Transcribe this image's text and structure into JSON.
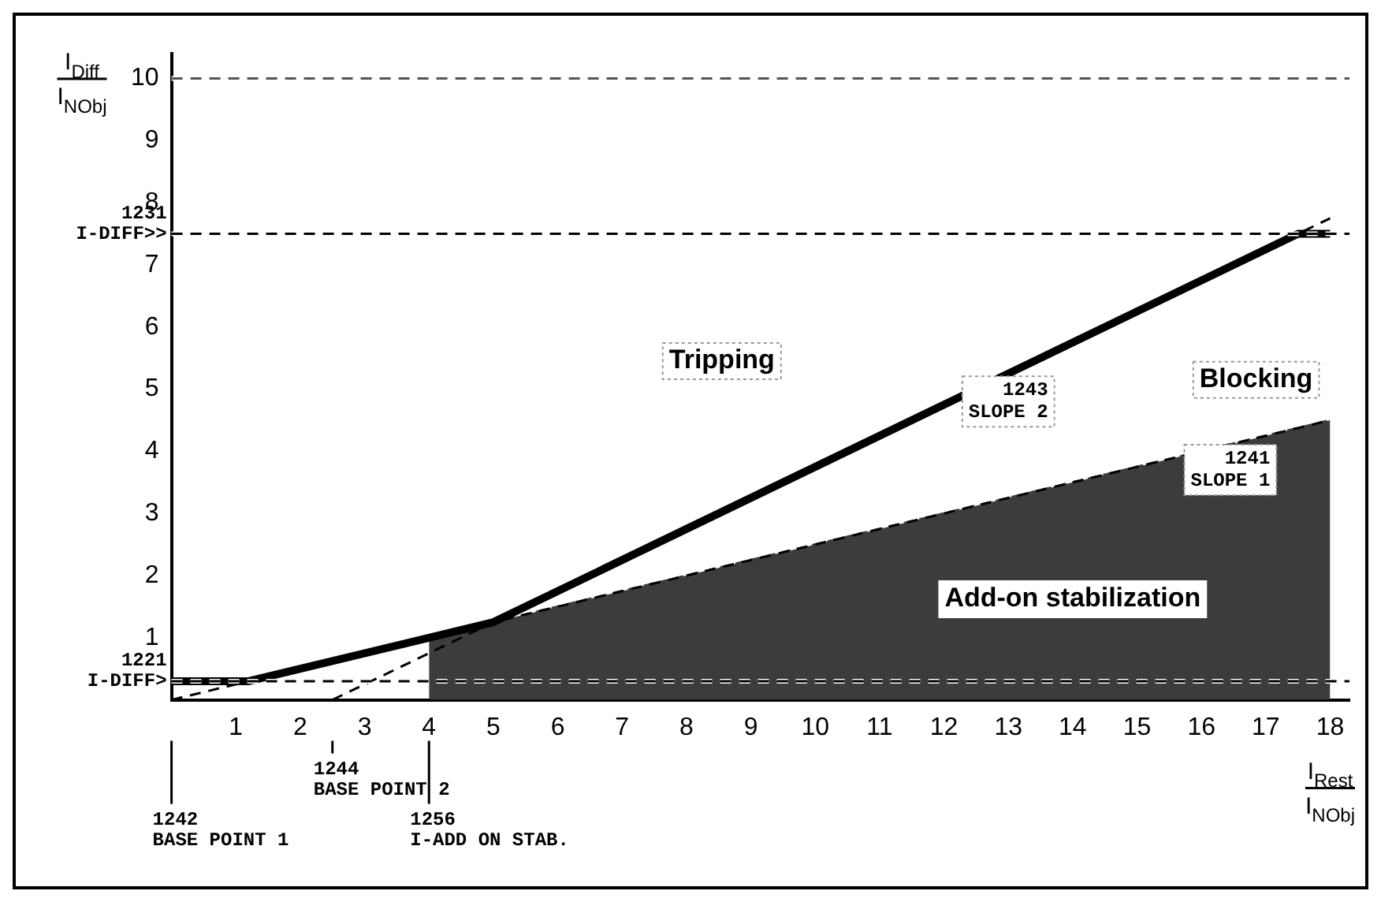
{
  "chart_data": {
    "type": "line",
    "xlabel": "I$_{Rest}$\nI$_{NObj}$",
    "ylabel": "I$_{Diff}$\nI$_{NObj}$",
    "xlim": [
      0,
      18.3
    ],
    "ylim": [
      0,
      10.4
    ],
    "xticks": [
      1,
      2,
      3,
      4,
      5,
      6,
      7,
      8,
      9,
      10,
      11,
      12,
      13,
      14,
      15,
      16,
      17,
      18
    ],
    "yticks": [
      1,
      2,
      3,
      4,
      5,
      6,
      7,
      8,
      9,
      10
    ],
    "series": [
      {
        "name": "Add-on stabilization",
        "type": "area",
        "x": [
          4,
          18
        ],
        "values": [
          1,
          4.5
        ],
        "color": "#3c3c3c"
      },
      {
        "type": "line",
        "x": [
          0,
          18
        ],
        "values": [
          0,
          4.5
        ],
        "color": "#000000",
        "line_style": "dashed"
      },
      {
        "type": "line",
        "x": [
          2.5,
          18
        ],
        "values": [
          0,
          7.75
        ],
        "color": "#000000",
        "line_style": "dashed"
      },
      {
        "type": "line",
        "x": [
          0,
          1.2,
          5,
          17.5,
          18
        ],
        "values": [
          0.3,
          0.3,
          1.25,
          7.5,
          7.5
        ],
        "color": "#000000",
        "line_style": "solid"
      }
    ],
    "ref_lines": [
      {
        "axis": "y",
        "value": 10,
        "color": "#555555",
        "line_style": "dashed"
      },
      {
        "axis": "y",
        "value": 7.5,
        "label": "1231\nI-DIFF>>",
        "color": "#000000",
        "line_style": "dashed"
      },
      {
        "axis": "y",
        "value": 0.3,
        "label": "1221\nI-DIFF>",
        "color": "#000000",
        "line_style": "dashed"
      },
      {
        "axis": "x",
        "value": 0,
        "label": "1242\nBASE POINT 1",
        "color": "#000000",
        "line_style": "solid"
      },
      {
        "axis": "x",
        "value": 2.5,
        "label": "1244\nBASE POINT 2",
        "color": "#000000",
        "line_style": "solid"
      },
      {
        "axis": "x",
        "value": 4,
        "label": "1256\nI-ADD ON STAB.",
        "color": "#000000",
        "line_style": "solid"
      }
    ],
    "annotations": [
      "Tripping",
      "Blocking",
      "1243\nSLOPE 2",
      "1241\nSLOPE 1"
    ]
  }
}
